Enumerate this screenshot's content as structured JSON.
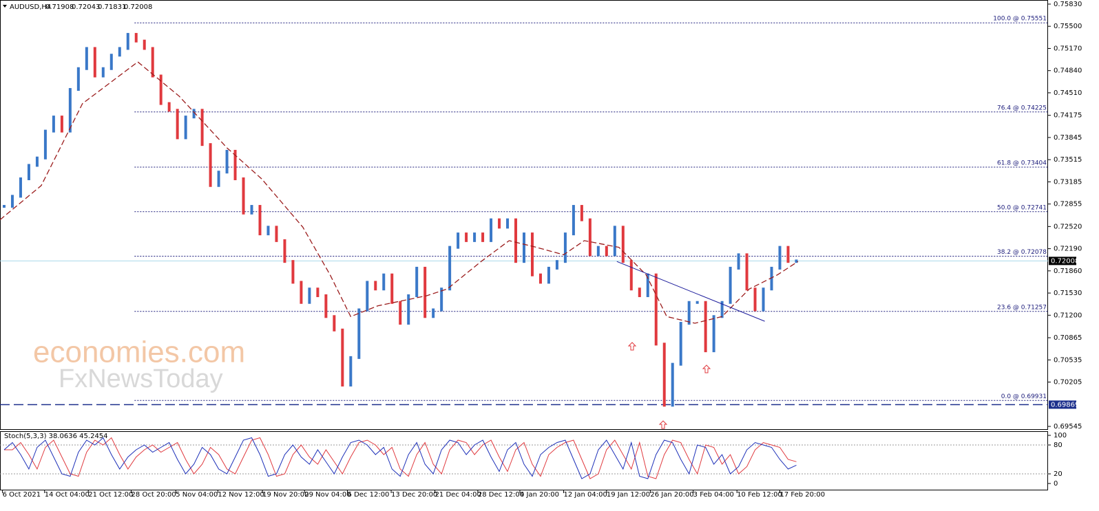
{
  "chart_data": [
    {
      "type": "candles",
      "title": "AUDUSD,H4",
      "ohlc": [
        0.71908,
        0.72043,
        0.71831,
        0.72008
      ],
      "watermark": [
        "economies.com",
        "FxNewsToday"
      ],
      "xlim": [
        0,
        127
      ],
      "xticks": [
        {
          "value": 0.3,
          "label": "6 Oct 2021"
        },
        {
          "value": 5.4,
          "label": "14 Oct 04:00"
        },
        {
          "value": 10.7,
          "label": "21 Oct 12:00"
        },
        {
          "value": 15.9,
          "label": "28 Oct 20:00"
        },
        {
          "value": 21.3,
          "label": "5 Nov 04:00"
        },
        {
          "value": 26.4,
          "label": "12 Nov 12:00"
        },
        {
          "value": 31.8,
          "label": "19 Nov 20:00"
        },
        {
          "value": 36.9,
          "label": "29 Nov 04:00"
        },
        {
          "value": 42.1,
          "label": "6 Dec 12:00"
        },
        {
          "value": 47.4,
          "label": "13 Dec 20:00"
        },
        {
          "value": 52.7,
          "label": "21 Dec 04:00"
        },
        {
          "value": 57.9,
          "label": "28 Dec 12:00"
        },
        {
          "value": 63,
          "label": "4 Jan 20:00"
        },
        {
          "value": 68.3,
          "label": "12 Jan 04:00"
        },
        {
          "value": 73.5,
          "label": "19 Jan 12:00"
        },
        {
          "value": 78.8,
          "label": "26 Jan 20:00"
        },
        {
          "value": 84,
          "label": "3 Feb 04:00"
        },
        {
          "value": 89.3,
          "label": "10 Feb 12:00"
        },
        {
          "value": 94.5,
          "label": "17 Feb 20:00"
        }
      ],
      "ylim": [
        0.69494,
        0.75891
      ],
      "yticks": [
        {
          "value": 0.7583,
          "label": "0.75830"
        },
        {
          "value": 0.755,
          "label": "0.75500"
        },
        {
          "value": 0.7517,
          "label": "0.75170"
        },
        {
          "value": 0.7484,
          "label": "0.74840"
        },
        {
          "value": 0.7451,
          "label": "0.74510"
        },
        0.74175,
        0.73845,
        0.73515,
        0.73185,
        0.72855,
        {
          "value": 0.7252,
          "label": "0.72520"
        },
        {
          "value": 0.7219,
          "label": "0.72190"
        },
        {
          "value": 0.7186,
          "label": "0.71860"
        },
        {
          "value": 0.7153,
          "label": "0.71530"
        },
        {
          "value": 0.712,
          "label": "0.71200"
        },
        0.70865,
        0.70535,
        0.70205,
        0.69545
      ],
      "up_color": "#3a78c8",
      "down_color": "#e0393e",
      "close": [
        0.7282,
        0.7297,
        0.7323,
        0.7343,
        0.7354,
        0.7394,
        0.7415,
        0.7394,
        0.7456,
        0.7487,
        0.7517,
        0.7476,
        0.7487,
        0.7507,
        0.7517,
        0.7538,
        0.7528,
        0.7517,
        0.7476,
        0.7435,
        0.7425,
        0.7384,
        0.7415,
        0.7425,
        0.7374,
        0.7313,
        0.7333,
        0.7364,
        0.7323,
        0.7272,
        0.7282,
        0.7241,
        0.7251,
        0.7231,
        0.72,
        0.7169,
        0.7139,
        0.7159,
        0.7149,
        0.7118,
        0.7098,
        0.7016,
        0.7057,
        0.7128,
        0.7169,
        0.7159,
        0.718,
        0.7139,
        0.7108,
        0.7149,
        0.719,
        0.7118,
        0.7128,
        0.7159,
        0.7221,
        0.7241,
        0.7231,
        0.7241,
        0.7231,
        0.7262,
        0.7251,
        0.7262,
        0.72,
        0.7241,
        0.718,
        0.7169,
        0.719,
        0.72,
        0.7241,
        0.7282,
        0.7262,
        0.721,
        0.7221,
        0.721,
        0.7251,
        0.72,
        0.7159,
        0.7149,
        0.718,
        0.7077,
        0.6986,
        0.7047,
        0.7108,
        0.7139,
        0.7139,
        0.7067,
        0.7118,
        0.7139,
        0.719,
        0.721,
        0.7159,
        0.7128,
        0.7159,
        0.719,
        0.7221,
        0.72,
        0.72008
      ],
      "ma": {
        "color": "#9b1c1c",
        "x": [
          0,
          5,
          10,
          16.7,
          21.7,
          27.5,
          31.7,
          36.7,
          40,
          42.5,
          45.8,
          51.7,
          54.2,
          58.3,
          61.7,
          65,
          68.3,
          70.8,
          75,
          78.3,
          80.8,
          84.2,
          87.5,
          90.8,
          94.2,
          96.7
        ],
        "values": [
          0.7262,
          0.7313,
          0.7435,
          0.7497,
          0.7446,
          0.7369,
          0.7323,
          0.7251,
          0.718,
          0.7118,
          0.7134,
          0.7149,
          0.7159,
          0.72,
          0.7231,
          0.7221,
          0.721,
          0.7231,
          0.7221,
          0.718,
          0.7118,
          0.7108,
          0.7118,
          0.7159,
          0.718,
          0.72
        ]
      },
      "trendline": {
        "color": "#1c1c9c",
        "x": [
          74.75,
          92.67
        ],
        "values": [
          0.72,
          0.7111
        ]
      },
      "fib_color": "#1a1a7a",
      "fib_start": 16.3,
      "fib_levels": [
        {
          "value": 0.75551,
          "label": "100.0 @ 0.75551"
        },
        {
          "value": 0.74225,
          "label": "76.4 @ 0.74225"
        },
        {
          "value": 0.73404,
          "label": "61.8 @ 0.73404"
        },
        {
          "value": 0.72741,
          "label": "50.0 @ 0.72741"
        },
        {
          "value": 0.72078,
          "label": "38.2 @ 0.72078"
        },
        {
          "value": 0.71257,
          "label": "23.6 @ 0.71257"
        },
        {
          "value": 0.69931,
          "label": "0.0 @ 0.69931"
        }
      ],
      "last_price": 0.72008,
      "support": 0.69869
    },
    {
      "type": "stochastic",
      "title": "Stoch(5,3,3) 38.0636 45.2454",
      "ylim": [
        0,
        100
      ],
      "yticks": [
        100,
        80,
        20,
        0
      ],
      "levels": [
        80,
        20
      ],
      "series": [
        {
          "name": "Main",
          "color": "#1c2fb8",
          "values": [
            70,
            85,
            60,
            30,
            75,
            90,
            55,
            20,
            15,
            65,
            90,
            80,
            95,
            60,
            30,
            55,
            70,
            80,
            65,
            75,
            85,
            50,
            20,
            40,
            75,
            60,
            30,
            20,
            55,
            90,
            95,
            60,
            15,
            20,
            60,
            80,
            55,
            40,
            70,
            45,
            20,
            55,
            85,
            90,
            80,
            60,
            75,
            30,
            15,
            60,
            85,
            40,
            20,
            70,
            90,
            85,
            60,
            80,
            90,
            55,
            25,
            70,
            85,
            40,
            15,
            60,
            75,
            85,
            90,
            50,
            10,
            20,
            70,
            90,
            60,
            30,
            85,
            15,
            10,
            60,
            90,
            85,
            50,
            20,
            80,
            75,
            40,
            60,
            20,
            35,
            70,
            85,
            80,
            75,
            50,
            30,
            38.0636
          ]
        },
        {
          "name": "Signal",
          "color": "#e0393e",
          "values": [
            70,
            70,
            85,
            60,
            30,
            75,
            90,
            55,
            20,
            15,
            65,
            90,
            80,
            95,
            60,
            30,
            55,
            70,
            80,
            65,
            75,
            85,
            50,
            20,
            40,
            75,
            60,
            30,
            20,
            55,
            90,
            95,
            60,
            15,
            20,
            60,
            80,
            55,
            40,
            70,
            45,
            20,
            55,
            85,
            90,
            80,
            60,
            75,
            30,
            15,
            60,
            85,
            40,
            20,
            70,
            90,
            85,
            60,
            80,
            90,
            55,
            25,
            70,
            85,
            40,
            15,
            60,
            75,
            85,
            90,
            50,
            10,
            20,
            70,
            90,
            60,
            30,
            85,
            15,
            10,
            60,
            90,
            85,
            50,
            20,
            80,
            75,
            40,
            60,
            20,
            35,
            70,
            85,
            80,
            75,
            50,
            45.2454
          ]
        }
      ]
    }
  ]
}
